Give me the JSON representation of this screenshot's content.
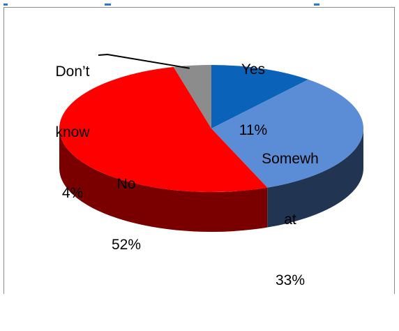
{
  "chart_data": {
    "type": "pie",
    "style": "3d",
    "title": "",
    "categories": [
      "Yes",
      "Somewhat",
      "No",
      "Don’t know"
    ],
    "values": [
      11,
      33,
      52,
      4
    ],
    "value_labels": [
      "11%",
      "33%",
      "52%",
      "4%"
    ],
    "colors": [
      "#0a63b8",
      "#5b8dd6",
      "#ff0000",
      "#8c8c8c"
    ],
    "side_colors": [
      "#063a70",
      "#213552",
      "#7a0000",
      "#555555"
    ],
    "legend": "none",
    "labels": {
      "yes": {
        "l1": "Yes",
        "l2": "11%"
      },
      "somewhat": {
        "l1": "Somewh",
        "l2": "at",
        "l3": "33%"
      },
      "no": {
        "l1": "No",
        "l2": "52%"
      },
      "dont_know": {
        "l1": "Don’t",
        "l2": "know",
        "l3": "4%"
      }
    }
  },
  "clipped_title_color": "#2e75d6"
}
